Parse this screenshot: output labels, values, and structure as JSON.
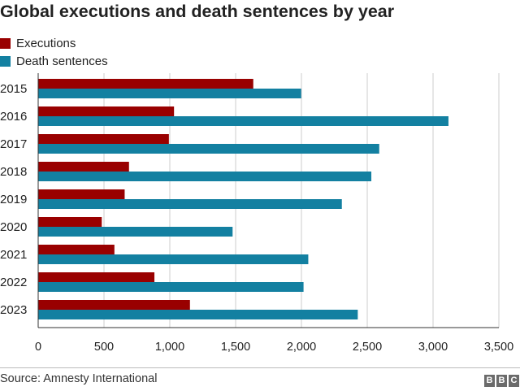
{
  "title": "Global executions and death sentences by year",
  "legend": [
    {
      "label": "Executions",
      "color": "#990000"
    },
    {
      "label": "Death sentences",
      "color": "#1380a1"
    }
  ],
  "source": "Source: Amnesty International",
  "logo": {
    "letters": [
      "B",
      "B",
      "C"
    ],
    "color": "#6b6b6b"
  },
  "chart_data": {
    "type": "bar",
    "orientation": "horizontal",
    "title": "Global executions and death sentences by year",
    "categories": [
      "2015",
      "2016",
      "2017",
      "2018",
      "2019",
      "2020",
      "2021",
      "2022",
      "2023"
    ],
    "series": [
      {
        "name": "Executions",
        "color": "#990000",
        "values": [
          1634,
          1032,
          993,
          690,
          657,
          483,
          579,
          883,
          1153
        ]
      },
      {
        "name": "Death sentences",
        "color": "#1380a1",
        "values": [
          1998,
          3117,
          2591,
          2531,
          2307,
          1477,
          2052,
          2016,
          2428
        ]
      }
    ],
    "xlim": [
      0,
      3500
    ],
    "xticks": [
      0,
      500,
      1000,
      1500,
      2000,
      2500,
      3000,
      3500
    ],
    "xtick_labels": [
      "0",
      "500",
      "1,000",
      "1,500",
      "2,000",
      "2,500",
      "3,000",
      "3,500"
    ],
    "xlabel": "",
    "ylabel": "",
    "grid": "vertical",
    "legend_position": "top-left"
  }
}
